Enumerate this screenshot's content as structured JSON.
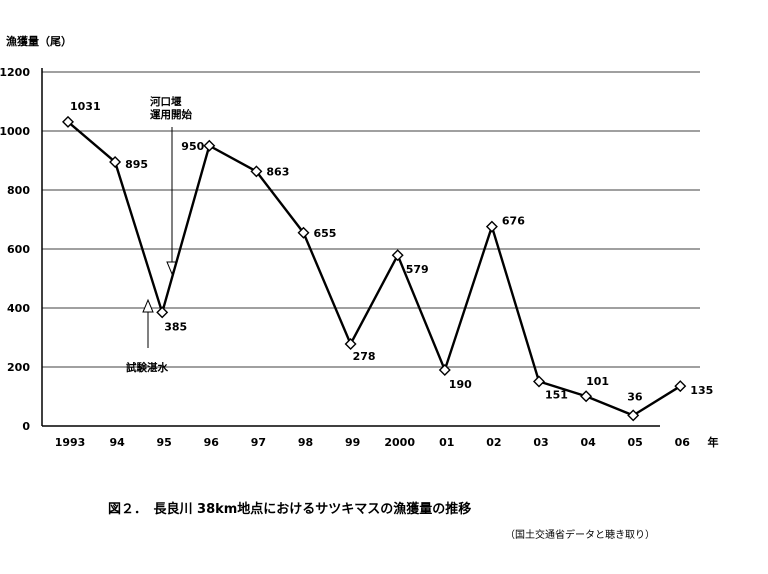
{
  "chart_data": {
    "type": "line",
    "ylabel": "漁獲量（尾）",
    "xlabel": "年",
    "ylim": [
      0,
      1200
    ],
    "yticks": [
      0,
      200,
      400,
      600,
      800,
      1000,
      1200
    ],
    "grid": true,
    "categories": [
      "1993",
      "94",
      "95",
      "96",
      "97",
      "98",
      "99",
      "2000",
      "01",
      "02",
      "03",
      "04",
      "05",
      "06"
    ],
    "series": [
      {
        "values": [
          1031,
          895,
          385,
          950,
          863,
          655,
          278,
          579,
          190,
          676,
          151,
          101,
          36,
          135
        ]
      }
    ],
    "data_labels": [
      "1031",
      "895",
      "385",
      "950",
      "863",
      "655",
      "278",
      "579",
      "190",
      "676",
      "151",
      "101",
      "36",
      "135"
    ],
    "annotations": [
      {
        "text": "河口堰\n運用開始",
        "x": "95"
      },
      {
        "text": "試験湛水",
        "x": "95"
      }
    ],
    "caption": "図２．　長良川 38km地点におけるサツキマスの漁獲量の推移",
    "source": "（国土交通省データと聴き取り）"
  }
}
